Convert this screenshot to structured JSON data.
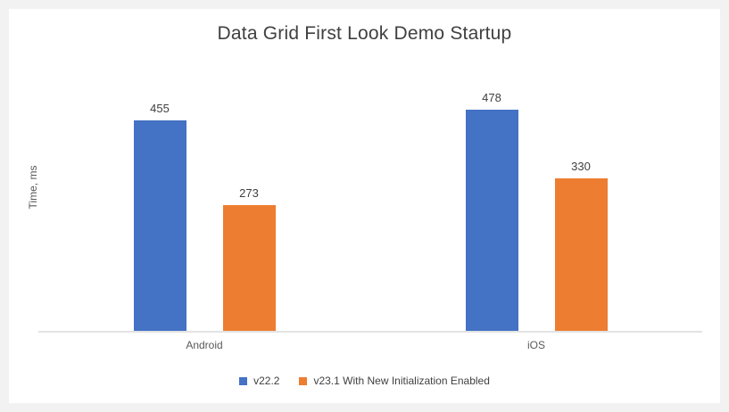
{
  "chart_data": {
    "type": "bar",
    "title": "Data Grid First Look Demo Startup",
    "xlabel": "",
    "ylabel": "Time, ms",
    "categories": [
      "Android",
      "iOS"
    ],
    "series": [
      {
        "name": "v22.2",
        "color": "#4472C4",
        "values": [
          455,
          478
        ]
      },
      {
        "name": "v23.1 With New Initialization Enabled",
        "color": "#ED7D31",
        "values": [
          273,
          330
        ]
      }
    ],
    "ylim": [
      0,
      500
    ],
    "grid": false,
    "data_labels": true,
    "legend_position": "bottom"
  },
  "colors": {
    "page_background": "#F2F2F2",
    "chart_background": "#FFFFFF",
    "axis_line": "#E3E3E3",
    "title_text": "#404040",
    "data_label_text": "#404040",
    "category_text": "#595959"
  }
}
